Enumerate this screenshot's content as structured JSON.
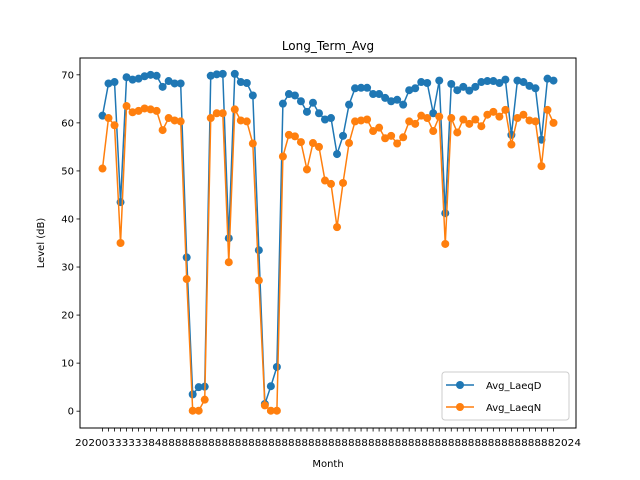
{
  "chart_data": {
    "type": "line",
    "title": "Long_Term_Avg",
    "xlabel": "Month",
    "ylabel": "Level (dB)",
    "ylim": [
      -3.5,
      73.5
    ],
    "yticks": [
      0,
      10,
      20,
      30,
      40,
      50,
      60,
      70
    ],
    "legend_position": "lower-right",
    "grid": false,
    "x_tick_labels_note": "overlapping date tick labels along the x axis, largely illegible",
    "x_first_tick_text": "2020",
    "x_last_tick_text": "2024",
    "series": [
      {
        "name": "Avg_LaeqD",
        "color": "#1f77b4",
        "values": [
          61.5,
          68.2,
          68.5,
          43.5,
          69.5,
          69.0,
          69.2,
          69.7,
          70.0,
          69.8,
          67.5,
          68.7,
          68.2,
          68.2,
          32.0,
          3.5,
          5.0,
          5.1,
          69.8,
          70.1,
          70.2,
          36.0,
          70.2,
          68.5,
          68.3,
          65.7,
          33.5,
          1.5,
          5.2,
          9.2,
          64.0,
          66.0,
          65.7,
          64.5,
          62.3,
          64.2,
          62.0,
          60.7,
          61.0,
          53.5,
          57.3,
          63.8,
          67.2,
          67.3,
          67.3,
          66.0,
          66.0,
          65.2,
          64.5,
          64.8,
          63.8,
          66.8,
          67.2,
          68.5,
          68.3,
          62.0,
          68.8,
          41.2,
          68.1,
          66.8,
          67.5,
          66.7,
          67.5,
          68.5,
          68.7,
          68.7,
          68.3,
          69.0,
          57.5,
          68.8,
          68.5,
          67.7,
          67.2,
          56.5,
          69.2,
          68.8
        ]
      },
      {
        "name": "Avg_LaeqN",
        "color": "#ff7f0e",
        "values": [
          50.5,
          61.0,
          59.5,
          35.0,
          63.5,
          62.2,
          62.5,
          63.0,
          62.8,
          62.5,
          58.5,
          61.0,
          60.5,
          60.3,
          27.5,
          0.1,
          0.1,
          2.4,
          61.0,
          62.0,
          62.0,
          31.0,
          62.8,
          60.5,
          60.3,
          55.7,
          27.2,
          1.2,
          0.1,
          0.1,
          53.0,
          57.5,
          57.2,
          56.0,
          50.3,
          55.8,
          55.0,
          48.0,
          47.3,
          38.3,
          47.5,
          55.8,
          60.3,
          60.5,
          60.7,
          58.3,
          59.0,
          56.8,
          57.3,
          55.7,
          57.0,
          60.3,
          59.8,
          61.5,
          61.0,
          58.3,
          61.3,
          34.8,
          61.0,
          58.0,
          60.7,
          59.8,
          60.7,
          59.3,
          61.7,
          62.3,
          61.3,
          62.7,
          55.5,
          61.0,
          61.7,
          60.5,
          60.3,
          51.0,
          62.7,
          60.0
        ]
      }
    ]
  }
}
